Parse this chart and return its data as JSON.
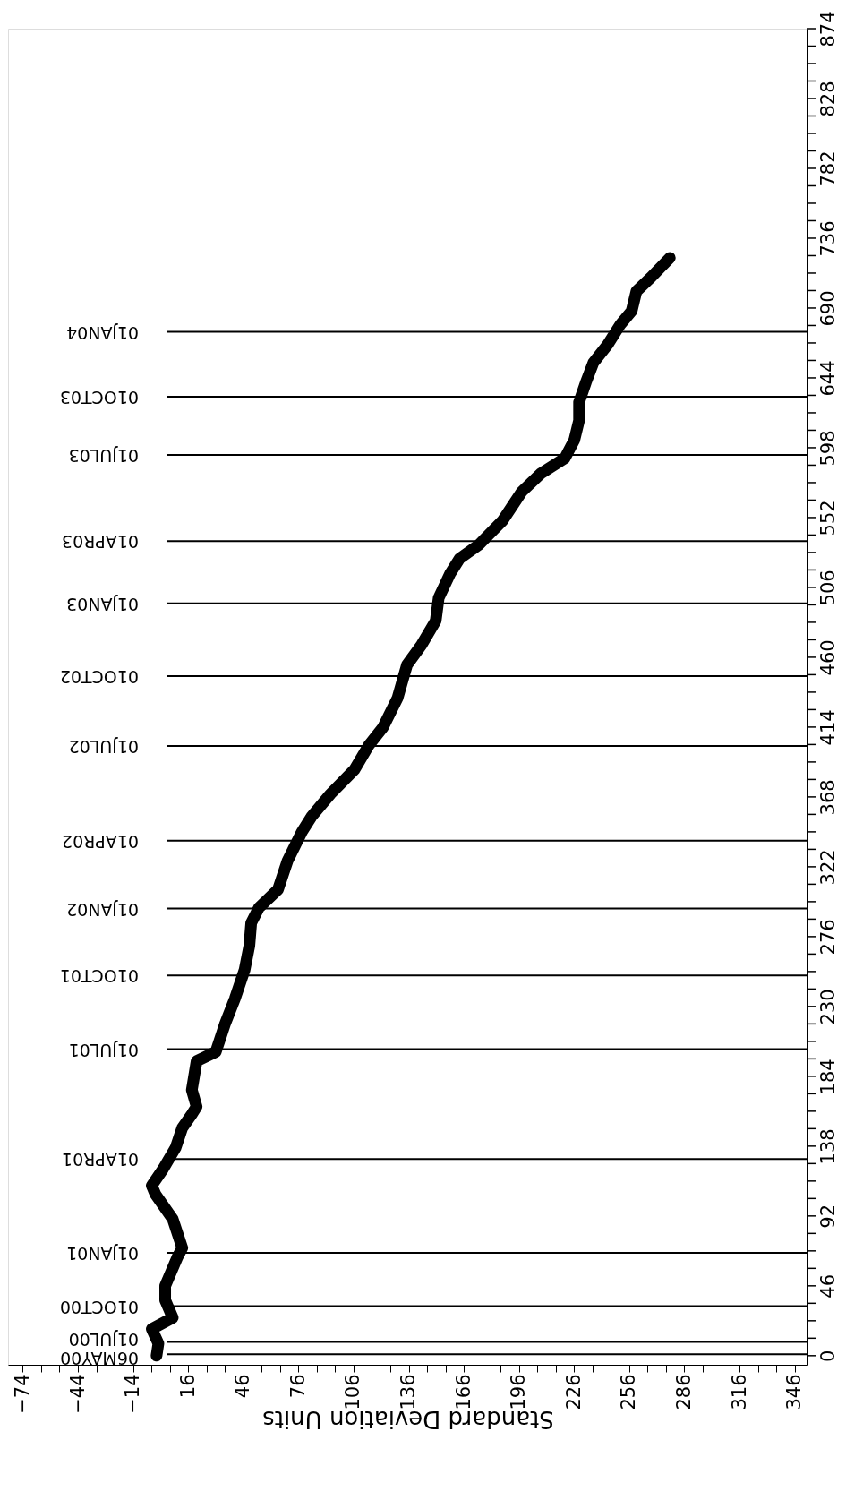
{
  "chart_data": {
    "type": "line",
    "xlabel": "Standard Deviation Units",
    "xlim": [
      -82,
      353
    ],
    "ylim": [
      -6,
      874
    ],
    "xticks": [
      -74,
      {
        "value": -64,
        "label": null
      },
      {
        "value": -54,
        "label": null
      },
      -44,
      {
        "value": -34,
        "label": null
      },
      {
        "value": -24,
        "label": null
      },
      -14,
      {
        "value": -4,
        "label": null
      },
      {
        "value": 6,
        "label": null
      },
      16,
      {
        "value": 26,
        "label": null
      },
      {
        "value": 36,
        "label": null
      },
      46,
      {
        "value": 56,
        "label": null
      },
      {
        "value": 66,
        "label": null
      },
      76,
      {
        "value": 86,
        "label": null
      },
      {
        "value": 96,
        "label": null
      },
      106,
      {
        "value": 116,
        "label": null
      },
      {
        "value": 126,
        "label": null
      },
      136,
      {
        "value": 146,
        "label": null
      },
      {
        "value": 156,
        "label": null
      },
      166,
      {
        "value": 176,
        "label": null
      },
      {
        "value": 186,
        "label": null
      },
      196,
      {
        "value": 206,
        "label": null
      },
      {
        "value": 216,
        "label": null
      },
      226,
      {
        "value": 236,
        "label": null
      },
      {
        "value": 246,
        "label": null
      },
      256,
      {
        "value": 266,
        "label": null
      },
      {
        "value": 276,
        "label": null
      },
      286,
      {
        "value": 296,
        "label": null
      },
      {
        "value": 306,
        "label": null
      },
      316,
      {
        "value": 326,
        "label": null
      },
      {
        "value": 336,
        "label": null
      },
      346
    ],
    "yticks": [
      0,
      {
        "value": 11.5,
        "label": null
      },
      {
        "value": 23,
        "label": null
      },
      {
        "value": 34.5,
        "label": null
      },
      46,
      {
        "value": 57.5,
        "label": null
      },
      {
        "value": 69,
        "label": null
      },
      {
        "value": 80.5,
        "label": null
      },
      92,
      {
        "value": 103.5,
        "label": null
      },
      {
        "value": 115,
        "label": null
      },
      {
        "value": 126.5,
        "label": null
      },
      138,
      {
        "value": 149.5,
        "label": null
      },
      {
        "value": 161,
        "label": null
      },
      {
        "value": 172.5,
        "label": null
      },
      184,
      {
        "value": 195.5,
        "label": null
      },
      {
        "value": 207,
        "label": null
      },
      {
        "value": 218.5,
        "label": null
      },
      230,
      {
        "value": 241.5,
        "label": null
      },
      {
        "value": 253,
        "label": null
      },
      {
        "value": 264.5,
        "label": null
      },
      276,
      {
        "value": 287.5,
        "label": null
      },
      {
        "value": 299,
        "label": null
      },
      {
        "value": 310.5,
        "label": null
      },
      322,
      {
        "value": 333.5,
        "label": null
      },
      {
        "value": 345,
        "label": null
      },
      {
        "value": 356.5,
        "label": null
      },
      368,
      {
        "value": 379.5,
        "label": null
      },
      {
        "value": 391,
        "label": null
      },
      {
        "value": 402.5,
        "label": null
      },
      414,
      {
        "value": 425.5,
        "label": null
      },
      {
        "value": 437,
        "label": null
      },
      {
        "value": 448.5,
        "label": null
      },
      460,
      {
        "value": 471.5,
        "label": null
      },
      {
        "value": 483,
        "label": null
      },
      {
        "value": 494.5,
        "label": null
      },
      506,
      {
        "value": 517.5,
        "label": null
      },
      {
        "value": 529,
        "label": null
      },
      {
        "value": 540.5,
        "label": null
      },
      552,
      {
        "value": 563.5,
        "label": null
      },
      {
        "value": 575,
        "label": null
      },
      {
        "value": 586.5,
        "label": null
      },
      598,
      {
        "value": 609.5,
        "label": null
      },
      {
        "value": 621,
        "label": null
      },
      {
        "value": 632.5,
        "label": null
      },
      644,
      {
        "value": 655.5,
        "label": null
      },
      {
        "value": 667,
        "label": null
      },
      {
        "value": 678.5,
        "label": null
      },
      690,
      {
        "value": 701.5,
        "label": null
      },
      {
        "value": 713,
        "label": null
      },
      {
        "value": 724.5,
        "label": null
      },
      736,
      {
        "value": 747.5,
        "label": null
      },
      {
        "value": 759,
        "label": null
      },
      {
        "value": 770.5,
        "label": null
      },
      782,
      {
        "value": 793.5,
        "label": null
      },
      {
        "value": 805,
        "label": null
      },
      {
        "value": 816.5,
        "label": null
      },
      828,
      {
        "value": 839.5,
        "label": null
      },
      {
        "value": 851,
        "label": null
      },
      {
        "value": 862.5,
        "label": null
      },
      874
    ],
    "series": [
      {
        "color": "#000000",
        "x": [
          -1.2,
          -0.2,
          -3.8,
          7.6,
          3.5,
          3.5,
          10.2,
          12.8,
          7.6,
          -1.7,
          -3.8,
          2.4,
          9.2,
          12.8,
          18.0,
          20.6,
          18.0,
          20.6,
          31.0,
          36.2,
          41.4,
          46.7,
          49.3,
          50.3,
          54.5,
          64.9,
          70.1,
          77.9,
          83.1,
          93.5,
          106.5,
          114.3,
          122.1,
          129.9,
          135.1,
          142.9,
          150.7,
          152.3,
          158.5,
          163.7,
          174.1,
          187.1,
          197.5,
          207.9,
          220.9,
          226.1,
          228.7,
          228.7,
          232.4,
          236.5,
          244.3,
          251.1,
          257.3,
          259.9,
          267.7,
          278.1
        ],
        "values": [
          0,
          8,
          17.6,
          25,
          36.5,
          46,
          65,
          71,
          90,
          106,
          112,
          123,
          137,
          150,
          159,
          164,
          175,
          194,
          200,
          219,
          235,
          254,
          270,
          285,
          295,
          307,
          326,
          345,
          355,
          370,
          386,
          402,
          414,
          433,
          455,
          468,
          484,
          499,
          515,
          525,
          534,
          550,
          569,
          581,
          591,
          603,
          616,
          628,
          641,
          654,
          666,
          679,
          688,
          701,
          710,
          723
        ]
      }
    ],
    "ref_lines": [
      {
        "axis": "y",
        "value": 1,
        "label": "06MAY00"
      },
      {
        "axis": "y",
        "value": 9,
        "label": "01JUL00"
      },
      {
        "axis": "y",
        "value": 32.6,
        "label": "01OCT00"
      },
      {
        "axis": "y",
        "value": 67.8,
        "label": "01JAN01"
      },
      {
        "axis": "y",
        "value": 129.5,
        "label": "01APR01"
      },
      {
        "axis": "y",
        "value": 201.9,
        "label": "01JUL01"
      },
      {
        "axis": "y",
        "value": 250.4,
        "label": "01OCT01"
      },
      {
        "axis": "y",
        "value": 294.5,
        "label": "01JAN02"
      },
      {
        "axis": "y",
        "value": 339.2,
        "label": "01APR02"
      },
      {
        "axis": "y",
        "value": 401.6,
        "label": "01JUL02"
      },
      {
        "axis": "y",
        "value": 447.6,
        "label": "01OCT02"
      },
      {
        "axis": "y",
        "value": 495.5,
        "label": "01JAN03"
      },
      {
        "axis": "y",
        "value": 536.5,
        "label": "01APR03"
      },
      {
        "axis": "y",
        "value": 593.2,
        "label": "01JUL03"
      },
      {
        "axis": "y",
        "value": 631.6,
        "label": "01OCT03"
      },
      {
        "axis": "y",
        "value": 674.3,
        "label": "01JAN04"
      }
    ],
    "grid": false
  }
}
